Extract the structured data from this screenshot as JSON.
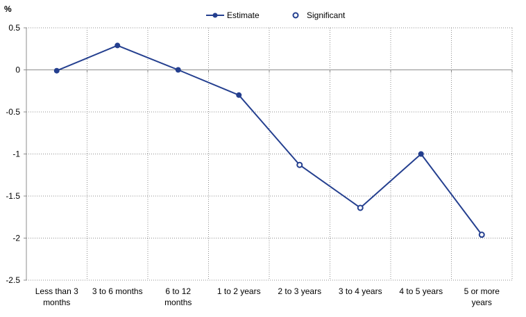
{
  "chart_data": {
    "type": "line",
    "ylabel": "%",
    "ylim": [
      -2.5,
      0.5
    ],
    "yticks": [
      0.5,
      0,
      -0.5,
      -1,
      -1.5,
      -2,
      -2.5
    ],
    "ytick_labels": [
      "0.5",
      "0",
      "-0.5",
      "-1",
      "-1.5",
      "-2",
      "-2.5"
    ],
    "categories": [
      [
        "Less than 3",
        "months"
      ],
      [
        "3 to 6 months"
      ],
      [
        "6 to 12",
        "months"
      ],
      [
        "1 to 2 years"
      ],
      [
        "2 to 3 years"
      ],
      [
        "3 to 4 years"
      ],
      [
        "4 to 5 years"
      ],
      [
        "5 or more",
        "years"
      ]
    ],
    "series": [
      {
        "name": "Estimate",
        "values": [
          -0.01,
          0.29,
          0.0,
          -0.3,
          -1.13,
          -1.64,
          -1.0,
          -1.96
        ],
        "significant": [
          false,
          false,
          false,
          false,
          true,
          true,
          false,
          true
        ]
      }
    ],
    "legend": {
      "entries": [
        "Estimate",
        "Significant"
      ],
      "position": "top"
    },
    "grid": true,
    "colors": {
      "series": "#243f8f",
      "grid": "#8c8c8c",
      "axis": "#8c8c8c"
    }
  }
}
